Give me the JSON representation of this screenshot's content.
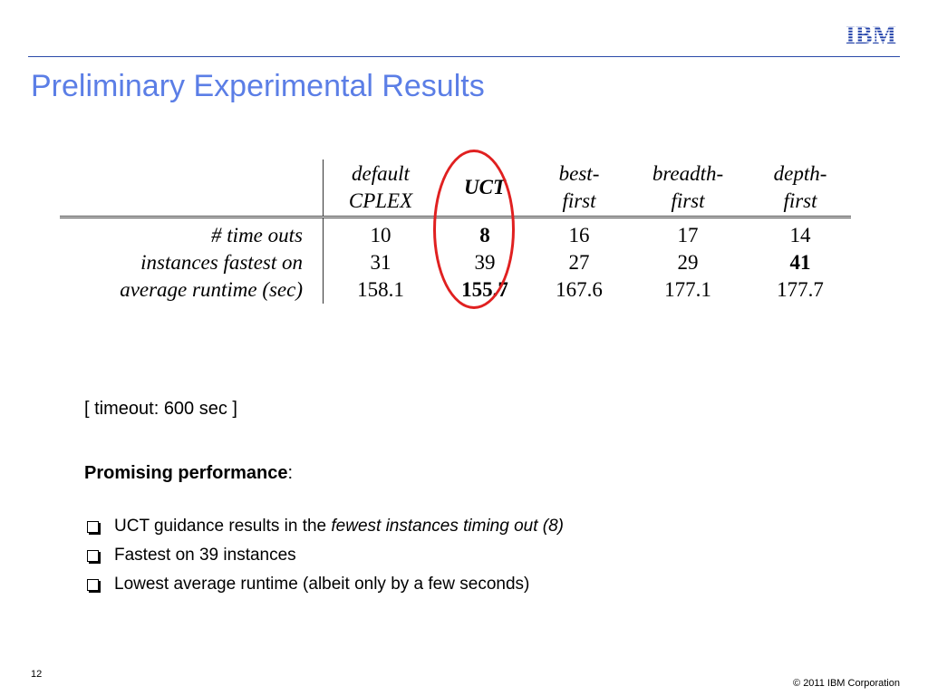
{
  "header": {
    "logo_text": "IBM",
    "title": "Preliminary Experimental Results"
  },
  "results_table": {
    "columns": [
      {
        "line1": "default",
        "line2": "CPLEX"
      },
      {
        "line1": "UCT",
        "line2": ""
      },
      {
        "line1": "best-",
        "line2": "first"
      },
      {
        "line1": "breadth-",
        "line2": "first"
      },
      {
        "line1": "depth-",
        "line2": "first"
      }
    ],
    "rows": [
      {
        "label": "# time outs",
        "values": [
          "10",
          "8",
          "16",
          "17",
          "14"
        ]
      },
      {
        "label": "instances fastest on",
        "values": [
          "31",
          "39",
          "27",
          "29",
          "41"
        ]
      },
      {
        "label": "average runtime (sec)",
        "values": [
          "158.1",
          "155.7",
          "167.6",
          "177.1",
          "177.7"
        ]
      }
    ]
  },
  "notes": {
    "timeout": "[ timeout: 600 sec ]",
    "heading": "Promising performance",
    "heading_colon": ":",
    "bullets": [
      {
        "text": "UCT guidance results in the ",
        "emphasis": "fewest instances timing out (8)"
      },
      {
        "text": "Fastest on 39 instances"
      },
      {
        "text": "Lowest average runtime (albeit only by a few seconds)"
      }
    ]
  },
  "footer": {
    "page_number": "12",
    "copyright": "© 2011 IBM Corporation"
  },
  "colors": {
    "title": "#5b7ee6",
    "logo": "#1f3fa8",
    "highlight_circle": "#e02020"
  }
}
